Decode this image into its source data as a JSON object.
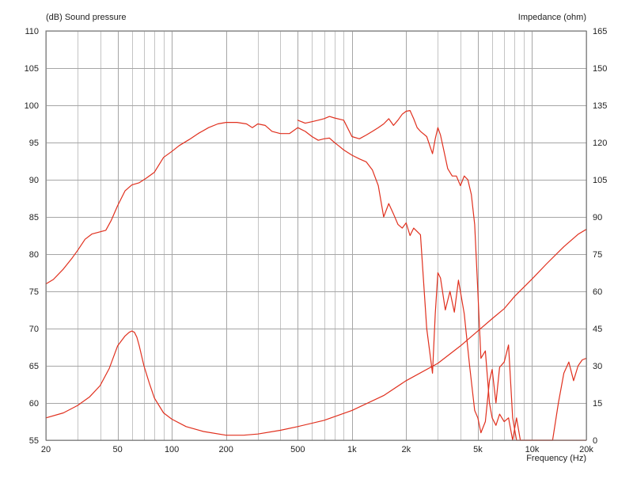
{
  "chart_data": {
    "type": "line",
    "title": "",
    "y_left_label": "(dB)  Sound pressure",
    "y_right_label": "Impedance  (ohm)",
    "xlabel": "Frequency  (Hz)",
    "x_scale": "log",
    "xlim": [
      20,
      20000
    ],
    "ylim_left": [
      55,
      110
    ],
    "ylim_right": [
      0,
      165
    ],
    "x_ticks": [
      20,
      50,
      100,
      200,
      500,
      1000,
      2000,
      5000,
      10000,
      20000
    ],
    "x_tick_labels": [
      "20",
      "50",
      "100",
      "200",
      "500",
      "1k",
      "2k",
      "5k",
      "10k",
      "20k"
    ],
    "x_minor_grid": [
      30,
      40,
      60,
      70,
      80,
      90,
      300,
      400,
      600,
      700,
      800,
      900,
      3000,
      4000,
      6000,
      7000,
      8000,
      9000
    ],
    "y_left_ticks": [
      55,
      60,
      65,
      70,
      75,
      80,
      85,
      90,
      95,
      100,
      105,
      110
    ],
    "y_left_tick_labels": [
      "55",
      "60",
      "65",
      "70",
      "75",
      "80",
      "85",
      "90",
      "95",
      "100",
      "105",
      "110"
    ],
    "y_right_ticks": [
      0,
      15,
      30,
      45,
      60,
      75,
      90,
      105,
      120,
      135,
      150,
      165
    ],
    "y_right_tick_labels": [
      "0",
      "15",
      "30",
      "45",
      "60",
      "75",
      "90",
      "105",
      "120",
      "135",
      "150",
      "165"
    ],
    "grid": true,
    "line_color": "#e0301e",
    "series": [
      {
        "axis": "left",
        "x": [
          20,
          22,
          25,
          28,
          30,
          33,
          36,
          40,
          43,
          46,
          50,
          55,
          60,
          66,
          72,
          80,
          90,
          100,
          110,
          125,
          140,
          160,
          180,
          200,
          230,
          260,
          280,
          300,
          330,
          360,
          400,
          450,
          500,
          550,
          600,
          650,
          700,
          750,
          800,
          850,
          900,
          1000,
          1100,
          1200,
          1300,
          1400,
          1500,
          1600,
          1700,
          1800,
          1900,
          2000,
          2100,
          2200,
          2400,
          2600,
          2800,
          2900,
          3000,
          3100,
          3300,
          3500,
          3700,
          3900,
          4200,
          4500,
          4800,
          5000,
          5200,
          5500,
          5800,
          6000,
          6300,
          6600,
          7000,
          7400,
          7800,
          8200,
          8600,
          9000,
          9500,
          10000,
          10500,
          11000,
          12000,
          13000,
          14000,
          15000,
          16000,
          17000,
          18000,
          19000,
          20000
        ],
        "y": [
          76,
          76.6,
          78,
          79.5,
          80.5,
          82,
          82.7,
          83,
          83.2,
          84.5,
          86.5,
          88.5,
          89.3,
          89.6,
          90.2,
          91,
          93,
          93.8,
          94.6,
          95.4,
          96.2,
          97,
          97.5,
          97.7,
          97.7,
          97.5,
          97,
          97.5,
          97.3,
          96.5,
          96.2,
          96.2,
          97,
          96.5,
          95.8,
          95.3,
          95.5,
          95.6,
          95,
          94.5,
          94,
          93.3,
          92.8,
          92.4,
          91.3,
          89.2,
          85,
          86.8,
          85.4,
          84,
          83.5,
          84.2,
          82.5,
          83.5,
          82.6,
          70,
          64,
          72,
          77.5,
          76.8,
          72.5,
          75,
          72.2,
          76.5,
          72,
          65,
          59,
          58,
          56,
          57.5,
          63,
          64.5,
          60,
          64.8,
          65.5,
          67.8,
          58,
          55,
          55,
          55,
          55,
          55,
          55,
          55,
          55,
          55,
          55,
          55,
          55,
          55,
          55,
          55,
          55
        ]
      },
      {
        "axis": "left",
        "x": [
          500,
          550,
          600,
          650,
          700,
          750,
          800,
          900,
          1000,
          1100,
          1200,
          1300,
          1400,
          1500,
          1600,
          1700,
          1800,
          1900,
          2000,
          2100,
          2200,
          2300,
          2400,
          2600,
          2800,
          2900,
          3000,
          3100,
          3200,
          3400,
          3600,
          3800,
          4000,
          4200,
          4400,
          4600,
          4800,
          5000,
          5200,
          5500,
          5800,
          6000,
          6300,
          6600,
          7000,
          7400,
          7800,
          8200,
          8600,
          9000,
          9500,
          10000,
          10500,
          11000,
          12000,
          13000,
          14000,
          15000,
          16000,
          17000,
          18000,
          19000,
          20000
        ],
        "y": [
          98,
          97.6,
          97.8,
          98,
          98.2,
          98.5,
          98.3,
          98,
          95.8,
          95.5,
          96,
          96.5,
          97,
          97.5,
          98.2,
          97.3,
          98,
          98.8,
          99.2,
          99.3,
          98.2,
          97,
          96.5,
          95.8,
          93.5,
          95.5,
          97,
          96,
          94.5,
          91.5,
          90.5,
          90.5,
          89.2,
          90.5,
          90,
          88,
          84,
          75,
          66,
          67,
          60,
          58,
          57,
          58.5,
          57.5,
          58,
          55,
          58,
          55,
          55,
          55,
          55,
          55,
          55,
          55,
          55,
          60,
          64,
          65.5,
          63,
          65,
          65.8,
          66
        ]
      },
      {
        "axis": "right",
        "x": [
          20,
          25,
          30,
          35,
          40,
          45,
          50,
          55,
          58,
          60,
          62,
          64,
          66,
          70,
          75,
          80,
          90,
          100,
          120,
          150,
          200,
          250,
          300,
          400,
          500,
          700,
          1000,
          1500,
          2000,
          3000,
          4000,
          5000,
          6000,
          7000,
          8000,
          10000,
          12000,
          15000,
          18000,
          20000
        ],
        "y": [
          9,
          11,
          14,
          17.5,
          22,
          29,
          38,
          42,
          43.5,
          44,
          43.5,
          41.5,
          38,
          30,
          23,
          17,
          11,
          8.5,
          5.5,
          3.5,
          2,
          2,
          2.5,
          4,
          5.5,
          8,
          12,
          18,
          24,
          31,
          38,
          44,
          49,
          53,
          58,
          65,
          71,
          78,
          83,
          85
        ]
      }
    ]
  }
}
